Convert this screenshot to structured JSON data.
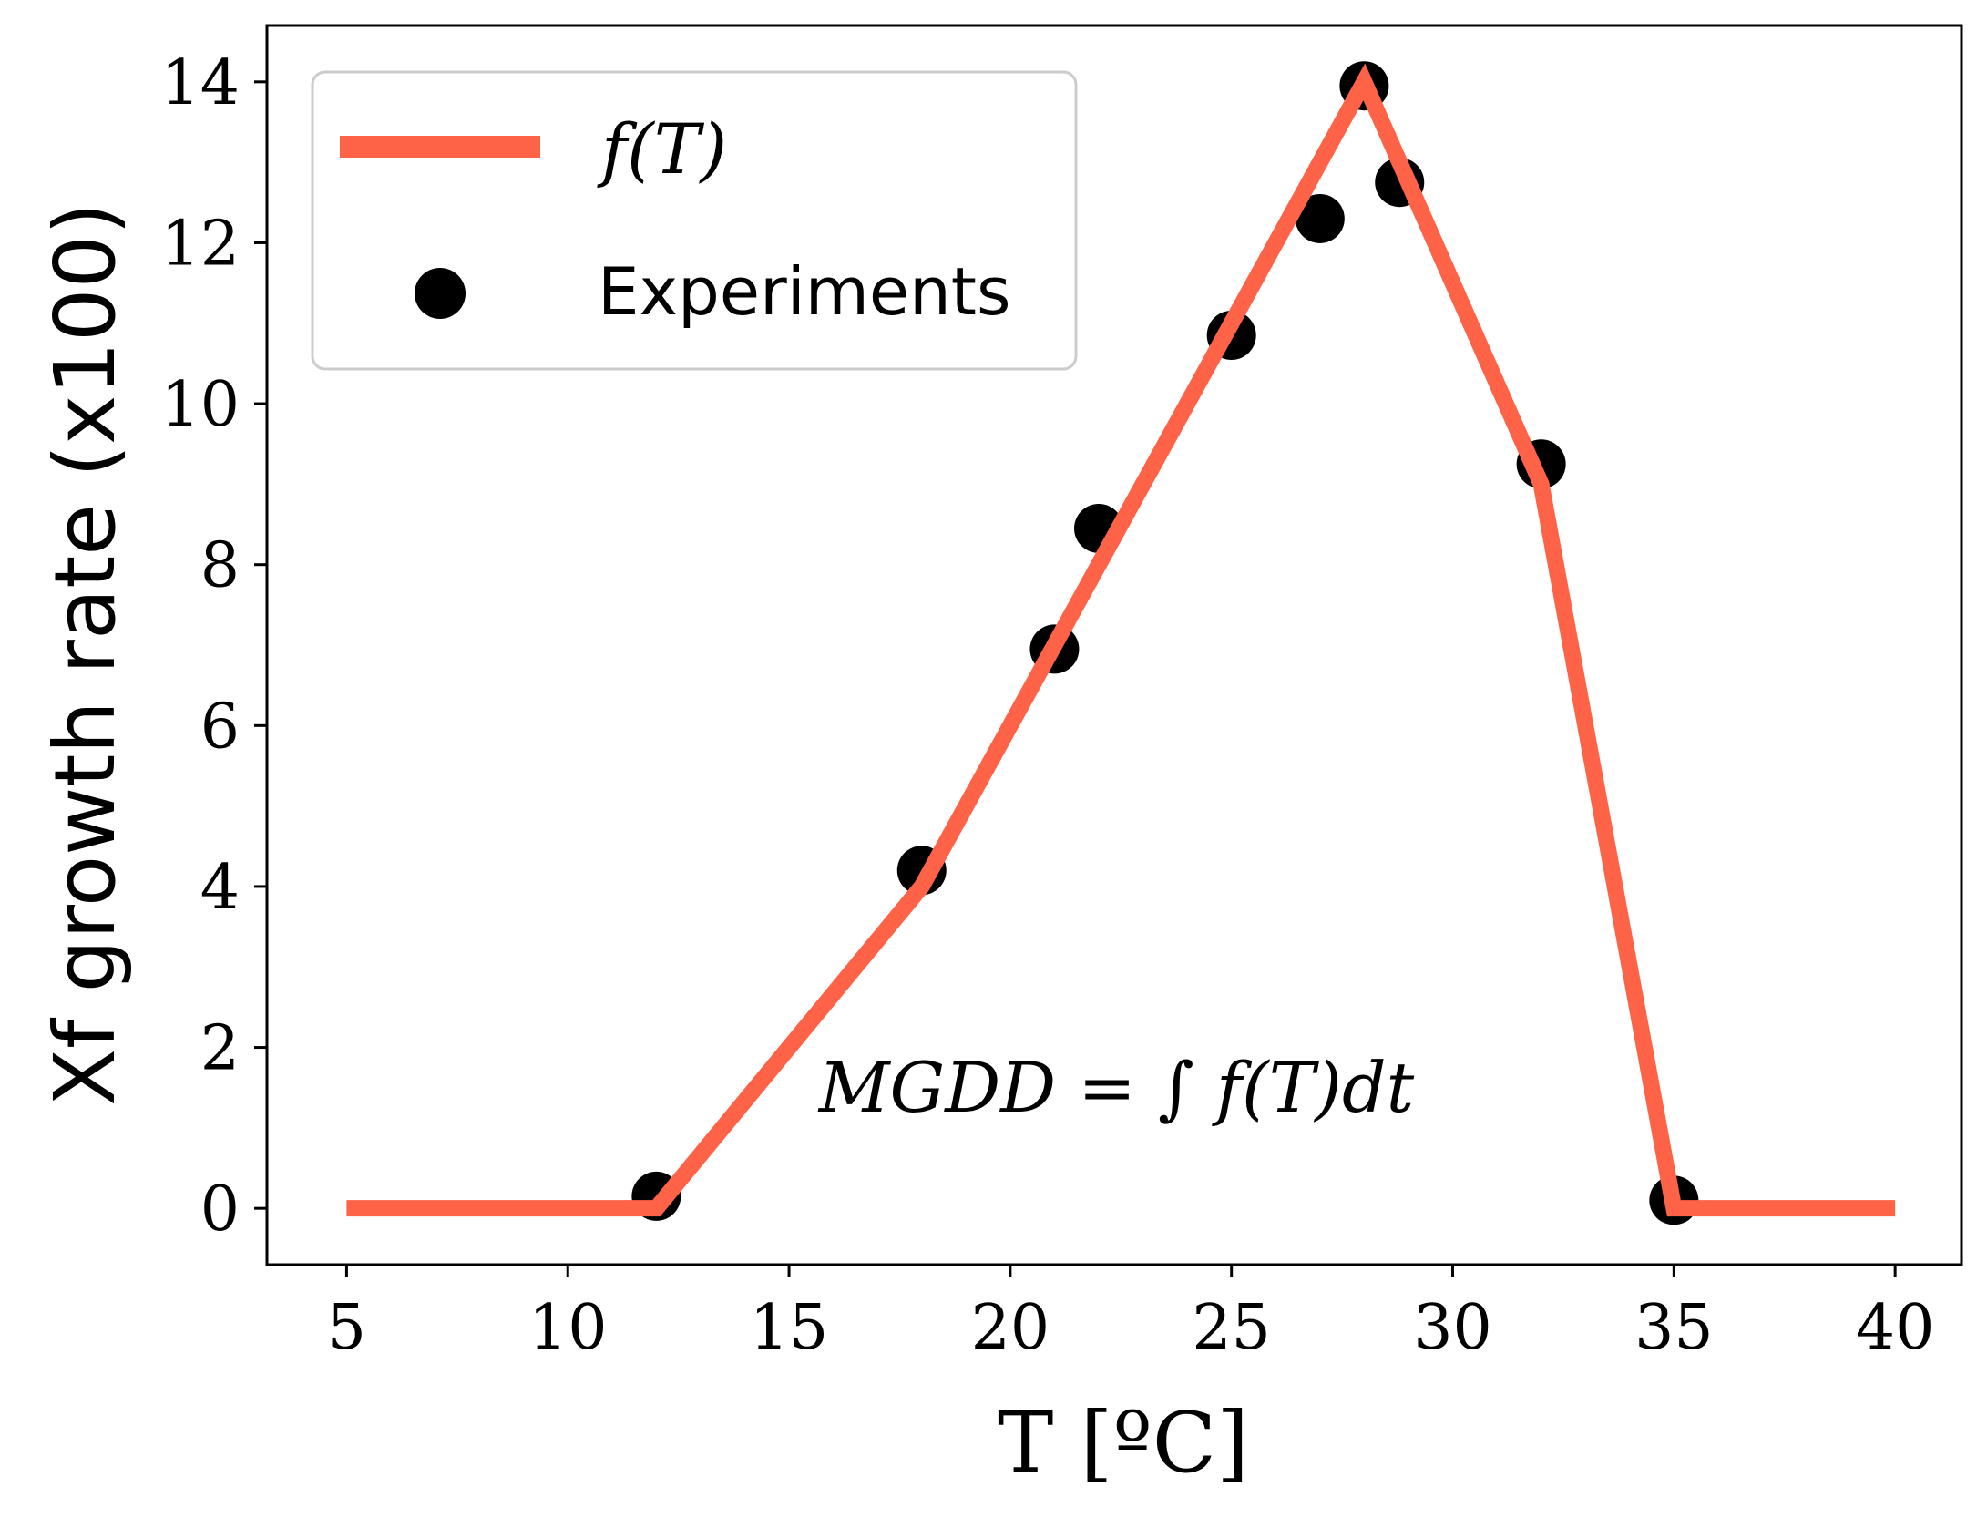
{
  "chart_data": {
    "type": "line",
    "xlabel": "T [ºC]",
    "ylabel": "Xf growth rate (x100)",
    "xlim": [
      3.2,
      41.5
    ],
    "ylim": [
      -0.7,
      14.7
    ],
    "xticks": [
      5,
      10,
      15,
      20,
      25,
      30,
      35,
      40
    ],
    "yticks": [
      0,
      2,
      4,
      6,
      8,
      10,
      12,
      14
    ],
    "grid": false,
    "legend": {
      "placement": "top-left",
      "entries": [
        "f(T)",
        "Experiments"
      ]
    },
    "annotation": "MGDD = ∫ f(T)dt",
    "series": [
      {
        "name": "f(T)",
        "type": "line",
        "color": "#ff6347",
        "x": [
          5,
          12,
          18,
          25,
          28,
          32,
          35,
          40
        ],
        "y": [
          0,
          0,
          4.0,
          11.0,
          14.0,
          9.0,
          0,
          0
        ]
      },
      {
        "name": "Experiments",
        "type": "scatter",
        "color": "#000000",
        "x": [
          12,
          18,
          21,
          22,
          25,
          27,
          28,
          28.8,
          32,
          35
        ],
        "y": [
          0.15,
          4.2,
          6.95,
          8.45,
          10.85,
          12.3,
          13.95,
          12.75,
          9.25,
          0.1
        ]
      }
    ]
  }
}
